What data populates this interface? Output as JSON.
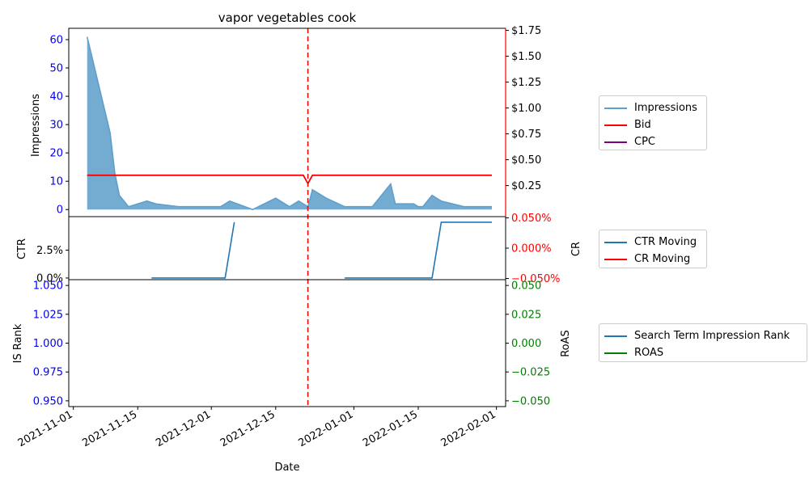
{
  "chart_data": [
    {
      "panel": "top",
      "type": "area",
      "title": "vapor vegetables cook",
      "ylabel": "Impressions",
      "ylim": [
        -2.5,
        64
      ],
      "yticks": [
        0,
        10,
        20,
        30,
        40,
        50,
        60
      ],
      "y2lim": [
        -0.05,
        1.77
      ],
      "y2ticks": [
        "$0.25",
        "$0.50",
        "$0.75",
        "$1.00",
        "$1.25",
        "$1.50",
        "$1.75"
      ],
      "y2tick_values": [
        0.25,
        0.5,
        0.75,
        1.0,
        1.25,
        1.5,
        1.75
      ],
      "series": [
        {
          "name": "Impressions",
          "color": "#5e9fcc",
          "x": [
            "2021-11-04",
            "2021-11-09",
            "2021-11-10",
            "2021-11-11",
            "2021-11-13",
            "2021-11-17",
            "2021-11-19",
            "2021-11-24",
            "2021-12-03",
            "2021-12-05",
            "2021-12-10",
            "2021-12-15",
            "2021-12-18",
            "2021-12-20",
            "2021-12-22",
            "2021-12-23",
            "2021-12-26",
            "2021-12-30",
            "2022-01-05",
            "2022-01-09",
            "2022-01-10",
            "2022-01-14",
            "2022-01-15",
            "2022-01-16",
            "2022-01-18",
            "2022-01-20",
            "2022-01-25",
            "2022-01-31"
          ],
          "values": [
            61,
            27,
            13,
            5,
            1,
            3,
            2,
            1,
            1,
            3,
            0,
            4,
            1,
            3,
            1,
            7,
            4,
            1,
            1,
            9,
            2,
            2,
            1,
            1,
            5,
            3,
            1,
            1
          ]
        },
        {
          "name": "Bid",
          "color": "#ff0000",
          "axis": "right",
          "x": [
            "2021-11-04",
            "2021-12-21",
            "2021-12-22",
            "2021-12-23",
            "2022-01-31"
          ],
          "values": [
            0.35,
            0.35,
            0.27,
            0.35,
            0.35
          ]
        },
        {
          "name": "CPC",
          "color": "#800080",
          "axis": "right",
          "x": [],
          "values": []
        }
      ],
      "vline": {
        "x": "2021-12-22",
        "color": "#ff0000",
        "style": "dashed"
      },
      "legend": "right"
    },
    {
      "panel": "middle",
      "type": "line",
      "ylabel": "CTR",
      "y2label": "CR",
      "ylim": [
        -0.15,
        5.5
      ],
      "yticks": [
        "0.0%",
        "2.5%"
      ],
      "ytick_values": [
        0,
        2.5
      ],
      "y2lim": [
        -0.052,
        0.052
      ],
      "y2ticks": [
        "−0.050%",
        "0.000%",
        "0.050%"
      ],
      "y2tick_values": [
        -0.05,
        0.0,
        0.05
      ],
      "series": [
        {
          "name": "CTR Moving",
          "color": "#1f77b4",
          "segments": [
            {
              "x": [
                "2021-11-18",
                "2021-12-04",
                "2021-12-06"
              ],
              "values": [
                0,
                0,
                5.0
              ]
            },
            {
              "x": [
                "2021-12-30",
                "2022-01-18",
                "2022-01-20",
                "2022-01-31"
              ],
              "values": [
                0,
                0,
                5.0,
                5.0
              ]
            }
          ]
        },
        {
          "name": "CR Moving",
          "color": "#ff0000",
          "axis": "right",
          "segments": []
        }
      ],
      "vline": {
        "x": "2021-12-22",
        "color": "#ff0000",
        "style": "dashed"
      },
      "legend": "right"
    },
    {
      "panel": "bottom",
      "type": "line",
      "ylabel": "IS Rank",
      "y2label": "RoAS",
      "xlabel": "Date",
      "ylim": [
        0.945,
        1.055
      ],
      "yticks": [
        "0.950",
        "0.975",
        "1.000",
        "1.025",
        "1.050"
      ],
      "ytick_values": [
        0.95,
        0.975,
        1.0,
        1.025,
        1.05
      ],
      "y2lim": [
        -0.055,
        0.055
      ],
      "y2ticks": [
        "−0.050",
        "−0.025",
        "0.000",
        "0.025",
        "0.050"
      ],
      "y2tick_values": [
        -0.05,
        -0.025,
        0.0,
        0.025,
        0.05
      ],
      "xticks": [
        "2021-11-01",
        "2021-11-15",
        "2021-12-01",
        "2021-12-15",
        "2022-01-01",
        "2022-01-15",
        "2022-02-01"
      ],
      "xlim": [
        "2021-10-31",
        "2022-02-03"
      ],
      "series": [
        {
          "name": "Search Term Impression Rank",
          "color": "#1f77b4",
          "values": []
        },
        {
          "name": "ROAS",
          "color": "#008000",
          "axis": "right",
          "values": []
        }
      ],
      "vline": {
        "x": "2021-12-22",
        "color": "#ff0000",
        "style": "dashed"
      },
      "legend": "right"
    }
  ],
  "colors": {
    "left_axis_ticks": "#0000ff",
    "right_axis_top": "#000000",
    "right_axis_top_spine": "#ff0000",
    "right_axis_middle": "#ff0000",
    "right_axis_bottom": "#008000"
  }
}
